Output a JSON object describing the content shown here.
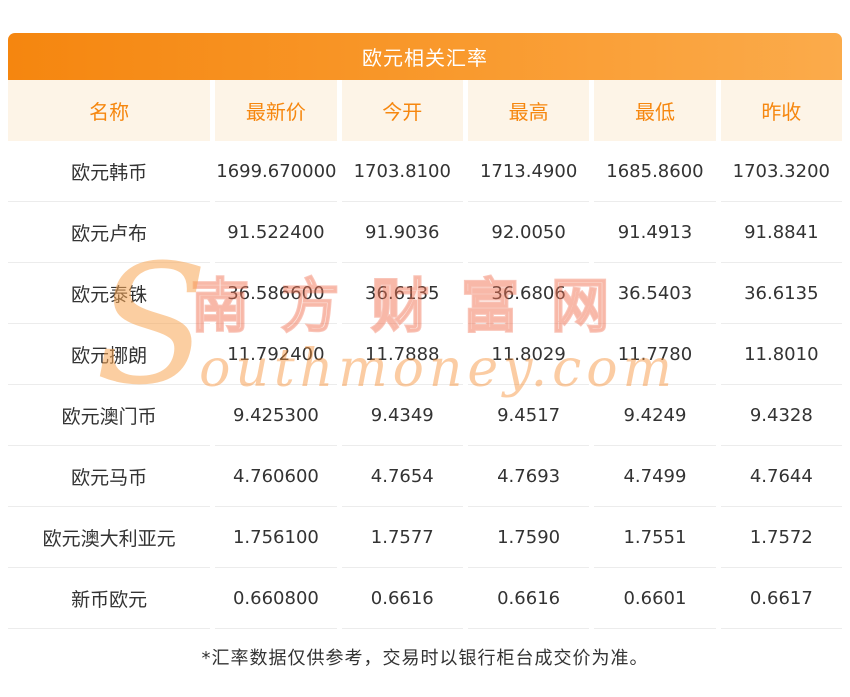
{
  "title": "欧元相关汇率",
  "table": {
    "headers": [
      "名称",
      "最新价",
      "今开",
      "最高",
      "最低",
      "昨收"
    ],
    "rows": [
      {
        "name": "欧元韩币",
        "values": [
          "1699.670000",
          "1703.8100",
          "1713.4900",
          "1685.8600",
          "1703.3200"
        ]
      },
      {
        "name": "欧元卢布",
        "values": [
          "91.522400",
          "91.9036",
          "92.0050",
          "91.4913",
          "91.8841"
        ]
      },
      {
        "name": "欧元泰铢",
        "values": [
          "36.586600",
          "36.6135",
          "36.6806",
          "36.5403",
          "36.6135"
        ]
      },
      {
        "name": "欧元挪朗",
        "values": [
          "11.792400",
          "11.7888",
          "11.8029",
          "11.7780",
          "11.8010"
        ]
      },
      {
        "name": "欧元澳门币",
        "values": [
          "9.425300",
          "9.4349",
          "9.4517",
          "9.4249",
          "9.4328"
        ]
      },
      {
        "name": "欧元马币",
        "values": [
          "4.760600",
          "4.7654",
          "4.7693",
          "4.7499",
          "4.7644"
        ]
      },
      {
        "name": "欧元澳大利亚元",
        "values": [
          "1.756100",
          "1.7577",
          "1.7590",
          "1.7551",
          "1.7572"
        ]
      },
      {
        "name": "新币欧元",
        "values": [
          "0.660800",
          "0.6616",
          "0.6616",
          "0.6601",
          "0.6617"
        ]
      }
    ]
  },
  "footer": "*汇率数据仅供参考，交易时以银行柜台成交价为准。",
  "watermark": {
    "cn": "南方财富网",
    "en_initial": "S",
    "en_rest": "outhmoney.com"
  },
  "colors": {
    "title_bar_gradient_start": "#f5860f",
    "title_bar_gradient_end": "#fbab4b",
    "header_row_bg": "#fdf4e7",
    "header_text": "#f6870f",
    "body_text": "#333333",
    "row_divider": "#ececec"
  },
  "chart_data": {
    "type": "table",
    "title": "欧元相关汇率",
    "columns": [
      "名称",
      "最新价",
      "今开",
      "最高",
      "最低",
      "昨收"
    ],
    "rows": [
      [
        "欧元韩币",
        1699.67,
        1703.81,
        1713.49,
        1685.86,
        1703.32
      ],
      [
        "欧元卢布",
        91.5224,
        91.9036,
        92.005,
        91.4913,
        91.8841
      ],
      [
        "欧元泰铢",
        36.5866,
        36.6135,
        36.6806,
        36.5403,
        36.6135
      ],
      [
        "欧元挪朗",
        11.7924,
        11.7888,
        11.8029,
        11.778,
        11.801
      ],
      [
        "欧元澳门币",
        9.4253,
        9.4349,
        9.4517,
        9.4249,
        9.4328
      ],
      [
        "欧元马币",
        4.7606,
        4.7654,
        4.7693,
        4.7499,
        4.7644
      ],
      [
        "欧元澳大利亚元",
        1.7561,
        1.7577,
        1.759,
        1.7551,
        1.7572
      ],
      [
        "新币欧元",
        0.6608,
        0.6616,
        0.6616,
        0.6601,
        0.6617
      ]
    ],
    "note": "*汇率数据仅供参考，交易时以银行柜台成交价为准。"
  }
}
